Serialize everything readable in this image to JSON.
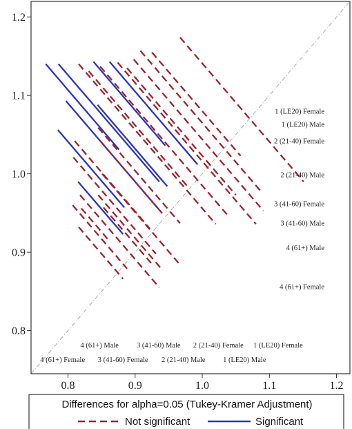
{
  "chart_data": {
    "type": "line",
    "title": "",
    "xlabel": "",
    "ylabel": "",
    "xlim": [
      0.745,
      1.22
    ],
    "ylim": [
      0.745,
      1.22
    ],
    "x_ticks": [
      0.8,
      0.9,
      1.0,
      1.1,
      1.2
    ],
    "y_ticks": [
      0.8,
      0.9,
      1.0,
      1.1,
      1.2
    ],
    "x_tick_labels": [
      "0.8",
      "0.9",
      "1.0",
      "1.1",
      "1.2"
    ],
    "y_tick_labels": [
      "0.8",
      "0.9",
      "1.0",
      "1.1",
      "1.2"
    ],
    "grid": false,
    "reference_line": "y = x (dash-dot, gray)",
    "colors": {
      "not_significant": "#a3202c",
      "significant": "#2a33c8",
      "reference": "#a9a9a9",
      "frame": "#333333"
    },
    "groups_y": [
      {
        "label": "1 (LE20) Female",
        "value": 1.08
      },
      {
        "label": "1 (LE20) Male",
        "value": 1.063
      },
      {
        "label": "2 (21-40) Female",
        "value": 1.042
      },
      {
        "label": "2 (21-40) Male",
        "value": 0.999
      },
      {
        "label": "3 (41-60) Female",
        "value": 0.962
      },
      {
        "label": "3 (41-60) Male",
        "value": 0.937
      },
      {
        "label": "4 (61+) Male",
        "value": 0.906
      },
      {
        "label": "4 (61+) Female",
        "value": 0.856
      }
    ],
    "groups_x": [
      {
        "label": "4 (61+) Male",
        "value": 0.847
      },
      {
        "label": "3 (41-60) Male",
        "value": 0.935
      },
      {
        "label": "2 (21-40) Female",
        "value": 1.024
      },
      {
        "label": "1 (LE20) Female",
        "value": 1.113
      },
      {
        "label": "4 (61+) Female",
        "value": 0.792
      },
      {
        "label": "3 (41-60) Female",
        "value": 0.882
      },
      {
        "label": "2 (21-40) Male",
        "value": 0.972
      },
      {
        "label": "1 (LE20) Male",
        "value": 1.063
      }
    ],
    "series": [
      {
        "name": "Significant",
        "style": "solid",
        "segments": [
          [
            [
              0.767,
              1.14
            ],
            [
              0.876,
              1.031
            ]
          ],
          [
            [
              0.786,
              1.14
            ],
            [
              0.936,
              0.99
            ]
          ],
          [
            [
              0.838,
              1.143
            ],
            [
              0.945,
              1.036
            ]
          ],
          [
            [
              0.862,
              1.143
            ],
            [
              0.993,
              1.012
            ]
          ],
          [
            [
              0.844,
              1.088
            ],
            [
              0.948,
              0.984
            ]
          ],
          [
            [
              0.797,
              1.093
            ],
            [
              0.934,
              0.956
            ]
          ],
          [
            [
              0.785,
              1.056
            ],
            [
              0.884,
              0.957
            ]
          ],
          [
            [
              0.815,
              0.99
            ],
            [
              0.882,
              0.923
            ]
          ]
        ]
      },
      {
        "name": "Not significant",
        "style": "dashed",
        "segments": [
          [
            [
              0.967,
              1.174
            ],
            [
              1.151,
              0.99
            ]
          ],
          [
            [
              0.908,
              1.157
            ],
            [
              1.09,
              0.975
            ]
          ],
          [
            [
              0.925,
              1.155
            ],
            [
              1.057,
              1.023
            ]
          ],
          [
            [
              0.898,
              1.146
            ],
            [
              1.091,
              0.953
            ]
          ],
          [
            [
              0.874,
              1.142
            ],
            [
              1.08,
              0.936
            ]
          ],
          [
            [
              0.888,
              1.135
            ],
            [
              1.05,
              0.973
            ]
          ],
          [
            [
              0.848,
              1.137
            ],
            [
              1.038,
              0.947
            ]
          ],
          [
            [
              0.816,
              1.14
            ],
            [
              1.02,
              0.936
            ]
          ],
          [
            [
              0.831,
              1.131
            ],
            [
              0.977,
              0.985
            ]
          ],
          [
            [
              0.845,
              1.059
            ],
            [
              0.967,
              0.937
            ]
          ],
          [
            [
              0.848,
              1.042
            ],
            [
              0.943,
              0.947
            ]
          ],
          [
            [
              0.81,
              1.042
            ],
            [
              0.922,
              0.93
            ]
          ],
          [
            [
              0.808,
              1.021
            ],
            [
              0.931,
              0.898
            ]
          ],
          [
            [
              0.851,
              1.0
            ],
            [
              0.967,
              0.884
            ]
          ],
          [
            [
              0.845,
              0.973
            ],
            [
              0.941,
              0.877
            ]
          ],
          [
            [
              0.853,
              0.957
            ],
            [
              0.925,
              0.885
            ]
          ],
          [
            [
              0.818,
              0.973
            ],
            [
              0.936,
              0.855
            ]
          ],
          [
            [
              0.816,
              0.932
            ],
            [
              0.882,
              0.866
            ]
          ],
          [
            [
              0.807,
              0.96
            ],
            [
              0.888,
              0.879
            ]
          ],
          [
            [
              0.82,
              0.956
            ],
            [
              0.859,
              0.917
            ]
          ]
        ]
      }
    ],
    "legend": {
      "position": "bottom",
      "title": "Differences for alpha=0.05 (Tukey-Kramer Adjustment)",
      "items": [
        {
          "label": "Not significant",
          "style": "dashed",
          "color": "#a3202c"
        },
        {
          "label": "Significant",
          "style": "solid",
          "color": "#2a33c8"
        }
      ]
    }
  }
}
